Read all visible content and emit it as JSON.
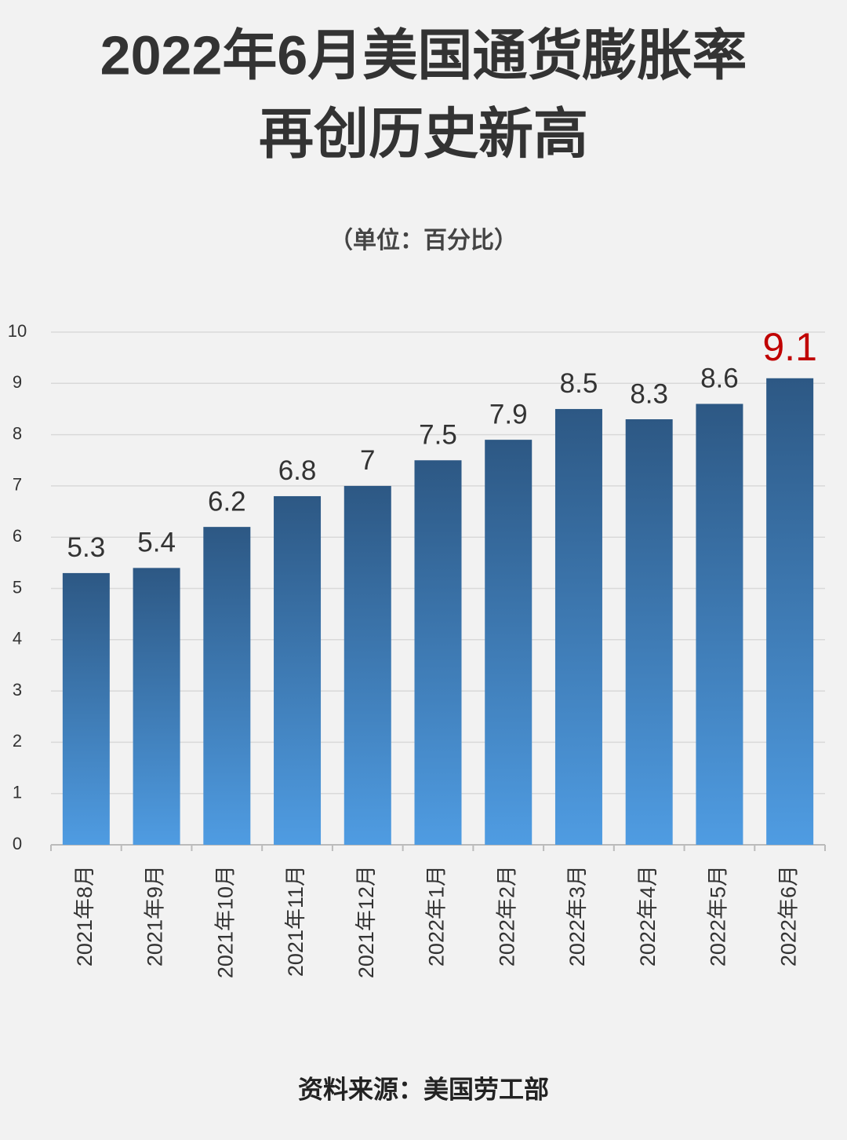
{
  "chart_data": {
    "type": "bar",
    "title": [
      "2022年6月美国通货膨胀率",
      "再创历史新高"
    ],
    "subtitle": "（单位：百分比）",
    "source": "资料来源：美国劳工部",
    "categories": [
      "2021年8月",
      "2021年9月",
      "2021年10月",
      "2021年11月",
      "2021年12月",
      "2022年1月",
      "2022年2月",
      "2022年3月",
      "2022年4月",
      "2022年5月",
      "2022年6月"
    ],
    "values": [
      5.3,
      5.4,
      6.2,
      6.8,
      7,
      7.5,
      7.9,
      8.5,
      8.3,
      8.6,
      9.1
    ],
    "gradient": {
      "top": "#2d5884",
      "bottom": "#4f9ce2"
    },
    "value_label_colors": [
      "#333333",
      "#333333",
      "#333333",
      "#333333",
      "#333333",
      "#333333",
      "#333333",
      "#333333",
      "#333333",
      "#333333",
      "#c00000"
    ],
    "ylim": [
      0,
      10
    ],
    "yticks": [
      0,
      1,
      2,
      3,
      4,
      5,
      6,
      7,
      8,
      9,
      10
    ],
    "grid": true
  }
}
